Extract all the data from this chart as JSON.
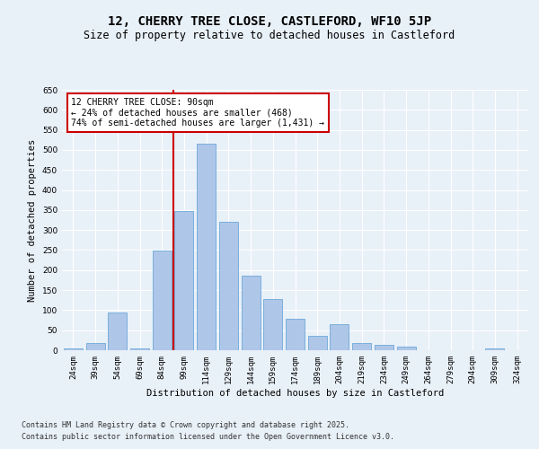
{
  "title_line1": "12, CHERRY TREE CLOSE, CASTLEFORD, WF10 5JP",
  "title_line2": "Size of property relative to detached houses in Castleford",
  "xlabel": "Distribution of detached houses by size in Castleford",
  "ylabel": "Number of detached properties",
  "categories": [
    "24sqm",
    "39sqm",
    "54sqm",
    "69sqm",
    "84sqm",
    "99sqm",
    "114sqm",
    "129sqm",
    "144sqm",
    "159sqm",
    "174sqm",
    "189sqm",
    "204sqm",
    "219sqm",
    "234sqm",
    "249sqm",
    "264sqm",
    "279sqm",
    "294sqm",
    "309sqm",
    "324sqm"
  ],
  "values": [
    5,
    17,
    95,
    5,
    248,
    348,
    515,
    320,
    185,
    128,
    79,
    36,
    65,
    18,
    13,
    9,
    1,
    1,
    1,
    5,
    1
  ],
  "bar_color": "#aec6e8",
  "bar_edgecolor": "#5a9fd4",
  "vline_color": "#cc0000",
  "annotation_text": "12 CHERRY TREE CLOSE: 90sqm\n← 24% of detached houses are smaller (468)\n74% of semi-detached houses are larger (1,431) →",
  "annotation_box_edgecolor": "#cc0000",
  "annotation_box_facecolor": "#ffffff",
  "ylim": [
    0,
    650
  ],
  "bg_color": "#e8f0f8",
  "footer_line1": "Contains HM Land Registry data © Crown copyright and database right 2025.",
  "footer_line2": "Contains public sector information licensed under the Open Government Licence v3.0.",
  "title_fontsize": 10,
  "subtitle_fontsize": 8.5,
  "axis_label_fontsize": 7.5,
  "tick_fontsize": 6.5,
  "annotation_fontsize": 7,
  "footer_fontsize": 6
}
